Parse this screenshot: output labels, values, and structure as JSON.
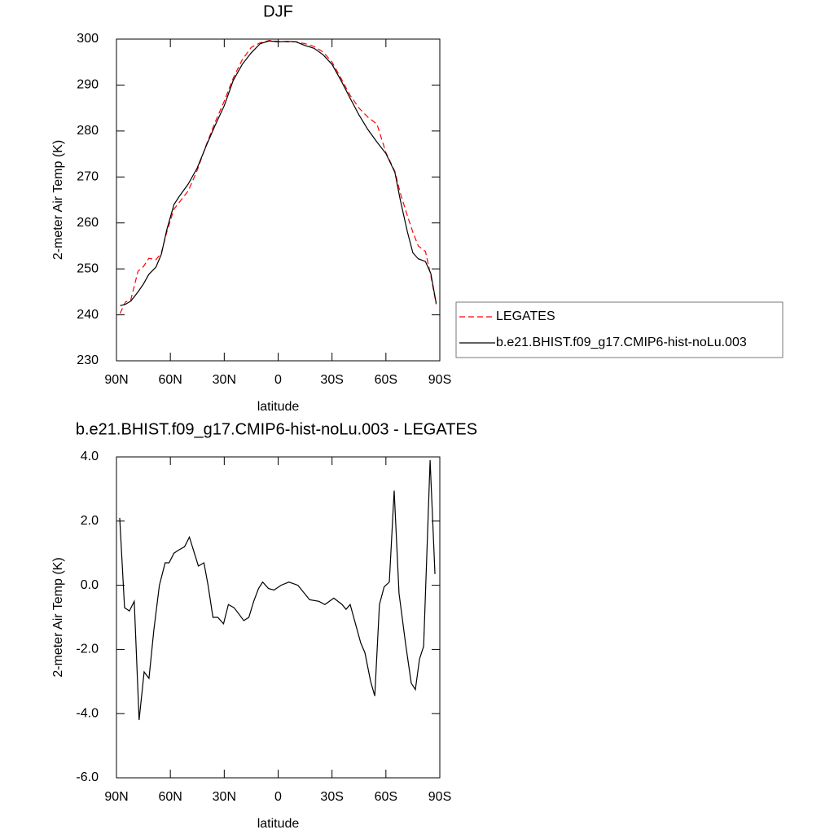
{
  "chart_data": [
    {
      "type": "line",
      "title": "DJF",
      "x_label": "latitude",
      "y_label": "2-meter Air Temp (K)",
      "x": [
        88,
        85,
        82,
        78,
        75,
        72,
        68,
        65,
        62,
        58,
        55,
        50,
        45,
        40,
        35,
        30,
        25,
        20,
        15,
        10,
        5,
        0,
        -5,
        -10,
        -15,
        -20,
        -25,
        -30,
        -35,
        -40,
        -45,
        -50,
        -55,
        -60,
        -65,
        -68,
        -72,
        -75,
        -78,
        -82,
        -85,
        -88
      ],
      "series": [
        {
          "name": "LEGATES",
          "color": "#ff0000",
          "dashed": true,
          "values": [
            240.3,
            242.8,
            243.3,
            249.5,
            250.5,
            252.3,
            252.0,
            253.5,
            258.0,
            263.0,
            264.5,
            267.0,
            271.5,
            277.0,
            282.0,
            286.5,
            291.5,
            295.5,
            298.2,
            299.2,
            299.7,
            299.5,
            299.4,
            299.4,
            299.0,
            298.4,
            297.2,
            295.0,
            291.5,
            287.8,
            285.0,
            283.0,
            281.5,
            275.3,
            271.2,
            266.5,
            261.5,
            258.0,
            255.0,
            253.8,
            248.5,
            242.3
          ]
        },
        {
          "name": "b.e21.BHIST.f09_g17.CMIP6-hist-noLu.003",
          "color": "#000000",
          "dashed": false,
          "values": [
            242.0,
            242.3,
            243.0,
            245.0,
            246.7,
            248.8,
            250.4,
            253.2,
            258.5,
            264.0,
            265.8,
            268.5,
            272.0,
            276.8,
            281.3,
            285.5,
            291.0,
            294.5,
            297.0,
            299.0,
            299.6,
            299.4,
            299.5,
            299.4,
            298.6,
            298.0,
            296.6,
            294.5,
            291.0,
            287.2,
            283.5,
            280.3,
            277.6,
            275.1,
            271.0,
            265.0,
            258.0,
            253.5,
            252.2,
            251.6,
            249.0,
            242.5
          ]
        }
      ],
      "xlim": [
        90,
        -90
      ],
      "xticks": [
        {
          "value": 90,
          "label": "90N"
        },
        {
          "value": 60,
          "label": "60N"
        },
        {
          "value": 30,
          "label": "30N"
        },
        0,
        {
          "value": -30,
          "label": "30S"
        },
        {
          "value": -60,
          "label": "60S"
        },
        {
          "value": -90,
          "label": "90S"
        }
      ],
      "ylim": [
        230,
        300
      ],
      "yticks": [
        230,
        240,
        250,
        260,
        270,
        280,
        290,
        300
      ],
      "legend": "right"
    },
    {
      "type": "line",
      "title": "b.e21.BHIST.f09_g17.CMIP6-hist-noLu.003 - LEGATES",
      "x_label": "latitude",
      "y_label": "2-meter Air Temp (K)",
      "x": [
        88.2,
        85.5,
        82.8,
        80.1,
        77.4,
        74.6,
        71.9,
        69.2,
        66.1,
        62.9,
        60.7,
        58,
        55.3,
        52.1,
        49.4,
        44.4,
        41.3,
        39,
        36.3,
        33.6,
        30.4,
        27.7,
        24.5,
        19.1,
        16.3,
        13.6,
        10.9,
        8.6,
        5.4,
        2.3,
        -1.6,
        -6,
        -11,
        -17.5,
        -22.7,
        -26,
        -31,
        -35.6,
        -37.8,
        -40.1,
        -46,
        -48.3,
        -51.5,
        -53.8,
        -56.4,
        -59,
        -61.9,
        -64.6,
        -67.3,
        -70.9,
        -74.1,
        -76.4,
        -78.7,
        -81,
        -84.6,
        -87.3
      ],
      "series": [
        {
          "color": "#000000",
          "dashed": false,
          "values": [
            2.1,
            -0.7,
            -0.8,
            -0.5,
            -4.2,
            -2.7,
            -2.9,
            -1.4,
            0,
            0.7,
            0.7,
            1.0,
            1.1,
            1.2,
            1.5,
            0.6,
            0.7,
            0,
            -1.0,
            -1.0,
            -1.2,
            -0.6,
            -0.7,
            -1.1,
            -1.0,
            -0.5,
            -0.1,
            0.1,
            -0.1,
            -0.15,
            0,
            0.1,
            0,
            -0.45,
            -0.5,
            -0.6,
            -0.4,
            -0.6,
            -0.75,
            -0.6,
            -1.8,
            -2.1,
            -3.0,
            -3.45,
            -0.6,
            -0.05,
            0.1,
            2.95,
            -0.25,
            -1.8,
            -3.05,
            -3.25,
            -2.3,
            -1.9,
            3.9,
            0.35
          ]
        }
      ],
      "xlim": [
        90,
        -90
      ],
      "xticks": [
        {
          "value": 90,
          "label": "90N"
        },
        {
          "value": 60,
          "label": "60N"
        },
        {
          "value": 30,
          "label": "30N"
        },
        0,
        {
          "value": -30,
          "label": "30S"
        },
        {
          "value": -60,
          "label": "60S"
        },
        {
          "value": -90,
          "label": "90S"
        }
      ],
      "ylim": [
        -6,
        4
      ],
      "yticks": [
        {
          "value": -6,
          "label": "-6.0"
        },
        {
          "value": -4,
          "label": "-4.0"
        },
        {
          "value": -2,
          "label": "-2.0"
        },
        {
          "value": 0,
          "label": "0.0"
        },
        {
          "value": 2,
          "label": "2.0"
        },
        {
          "value": 4,
          "label": "4.0"
        }
      ]
    }
  ]
}
